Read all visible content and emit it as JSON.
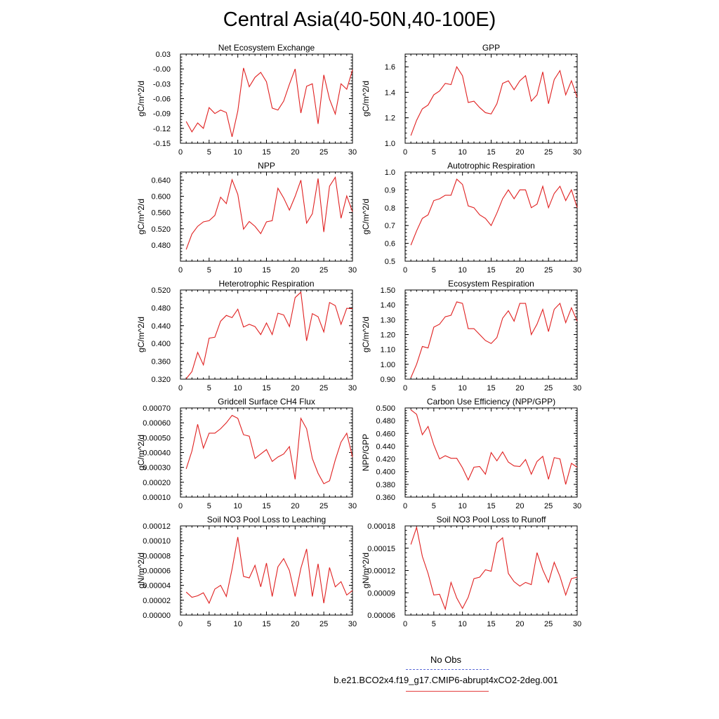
{
  "title": "Central Asia(40-50N,40-100E)",
  "series_color": "#e02020",
  "obs_color": "#5a6ad8",
  "legend": {
    "obs_label": "No Obs",
    "case_label": "b.e21.BCO2x4.f19_g17.CMIP6-abrupt4xCO2-2deg.001"
  },
  "chart_data": [
    {
      "type": "line",
      "title": "Net Ecosystem Exchange",
      "ylabel": "gC/m^2/d",
      "xlabel": "",
      "xlim": [
        0,
        30
      ],
      "ylim": [
        -0.15,
        0.03
      ],
      "xticks": [
        "0",
        "5",
        "10",
        "15",
        "20",
        "25",
        "30"
      ],
      "yticks": [
        "0.03",
        "-0.00",
        "-0.03",
        "-0.06",
        "-0.09",
        "-0.12",
        "-0.15"
      ],
      "ytick_values": [
        0.03,
        0.0,
        -0.03,
        -0.06,
        -0.09,
        -0.12,
        -0.15
      ],
      "x": [
        1,
        2,
        3,
        4,
        5,
        6,
        7,
        8,
        9,
        10,
        11,
        12,
        13,
        14,
        15,
        16,
        17,
        18,
        19,
        20,
        21,
        22,
        23,
        24,
        25,
        26,
        27,
        28,
        29,
        30
      ],
      "values": [
        -0.106,
        -0.127,
        -0.109,
        -0.12,
        -0.078,
        -0.09,
        -0.083,
        -0.088,
        -0.137,
        -0.085,
        0.002,
        -0.036,
        -0.017,
        -0.007,
        -0.026,
        -0.079,
        -0.083,
        -0.065,
        -0.031,
        0.0,
        -0.089,
        -0.035,
        -0.03,
        -0.111,
        -0.012,
        -0.061,
        -0.091,
        -0.03,
        -0.041,
        -0.002
      ]
    },
    {
      "type": "line",
      "title": "GPP",
      "ylabel": "gC/m^2/d",
      "xlabel": "",
      "xlim": [
        0,
        30
      ],
      "ylim": [
        1.0,
        1.7
      ],
      "xticks": [
        "0",
        "5",
        "10",
        "15",
        "20",
        "25",
        "30"
      ],
      "yticks": [
        "1.6",
        "1.4",
        "1.2",
        "1.0"
      ],
      "ytick_values": [
        1.6,
        1.4,
        1.2,
        1.0
      ],
      "x": [
        1,
        2,
        3,
        4,
        5,
        6,
        7,
        8,
        9,
        10,
        11,
        12,
        13,
        14,
        15,
        16,
        17,
        18,
        19,
        20,
        21,
        22,
        23,
        24,
        25,
        26,
        27,
        28,
        29,
        30
      ],
      "values": [
        1.06,
        1.18,
        1.27,
        1.3,
        1.38,
        1.41,
        1.47,
        1.46,
        1.6,
        1.53,
        1.32,
        1.33,
        1.28,
        1.24,
        1.23,
        1.31,
        1.47,
        1.49,
        1.42,
        1.49,
        1.53,
        1.33,
        1.38,
        1.56,
        1.31,
        1.5,
        1.57,
        1.38,
        1.49,
        1.36
      ]
    },
    {
      "type": "line",
      "title": "NPP",
      "ylabel": "gC/m^2/d",
      "xlabel": "",
      "xlim": [
        0,
        30
      ],
      "ylim": [
        0.44,
        0.66
      ],
      "xticks": [
        "0",
        "5",
        "10",
        "15",
        "20",
        "25",
        "30"
      ],
      "yticks": [
        "0.640",
        "0.600",
        "0.560",
        "0.520",
        "0.480"
      ],
      "ytick_values": [
        0.64,
        0.6,
        0.56,
        0.52,
        0.48
      ],
      "x": [
        1,
        2,
        3,
        4,
        5,
        6,
        7,
        8,
        9,
        10,
        11,
        12,
        13,
        14,
        15,
        16,
        17,
        18,
        19,
        20,
        21,
        22,
        23,
        24,
        25,
        26,
        27,
        28,
        29,
        30
      ],
      "values": [
        0.469,
        0.507,
        0.526,
        0.537,
        0.54,
        0.553,
        0.598,
        0.582,
        0.641,
        0.605,
        0.519,
        0.538,
        0.526,
        0.508,
        0.537,
        0.54,
        0.62,
        0.596,
        0.566,
        0.6,
        0.64,
        0.534,
        0.557,
        0.644,
        0.512,
        0.625,
        0.647,
        0.546,
        0.601,
        0.562
      ]
    },
    {
      "type": "line",
      "title": "Autotrophic Respiration",
      "ylabel": "gC/m^2/d",
      "xlabel": "",
      "xlim": [
        0,
        30
      ],
      "ylim": [
        0.5,
        1.0
      ],
      "xticks": [
        "0",
        "5",
        "10",
        "15",
        "20",
        "25",
        "30"
      ],
      "yticks": [
        "1.0",
        "0.9",
        "0.8",
        "0.7",
        "0.6",
        "0.5"
      ],
      "ytick_values": [
        1.0,
        0.9,
        0.8,
        0.7,
        0.6,
        0.5
      ],
      "x": [
        1,
        2,
        3,
        4,
        5,
        6,
        7,
        8,
        9,
        10,
        11,
        12,
        13,
        14,
        15,
        16,
        17,
        18,
        19,
        20,
        21,
        22,
        23,
        24,
        25,
        26,
        27,
        28,
        29,
        30
      ],
      "values": [
        0.59,
        0.67,
        0.74,
        0.76,
        0.84,
        0.85,
        0.87,
        0.87,
        0.96,
        0.93,
        0.81,
        0.8,
        0.76,
        0.74,
        0.7,
        0.77,
        0.85,
        0.9,
        0.85,
        0.9,
        0.9,
        0.8,
        0.82,
        0.92,
        0.8,
        0.88,
        0.92,
        0.84,
        0.9,
        0.8
      ]
    },
    {
      "type": "line",
      "title": "Heterotrophic Respiration",
      "ylabel": "gC/m^2/d",
      "xlabel": "",
      "xlim": [
        0,
        30
      ],
      "ylim": [
        0.32,
        0.52
      ],
      "xticks": [
        "0",
        "5",
        "10",
        "15",
        "20",
        "25",
        "30"
      ],
      "yticks": [
        "0.520",
        "0.480",
        "0.440",
        "0.400",
        "0.360",
        "0.320"
      ],
      "ytick_values": [
        0.52,
        0.48,
        0.44,
        0.4,
        0.36,
        0.32
      ],
      "x": [
        1,
        2,
        3,
        4,
        5,
        6,
        7,
        8,
        9,
        10,
        11,
        12,
        13,
        14,
        15,
        16,
        17,
        18,
        19,
        20,
        21,
        22,
        23,
        24,
        25,
        26,
        27,
        28,
        29,
        30
      ],
      "values": [
        0.321,
        0.337,
        0.38,
        0.352,
        0.412,
        0.414,
        0.45,
        0.463,
        0.458,
        0.477,
        0.437,
        0.443,
        0.438,
        0.42,
        0.446,
        0.42,
        0.468,
        0.464,
        0.438,
        0.503,
        0.515,
        0.406,
        0.467,
        0.46,
        0.426,
        0.492,
        0.485,
        0.443,
        0.479,
        0.478
      ]
    },
    {
      "type": "line",
      "title": "Ecosystem Respiration",
      "ylabel": "gC/m^2/d",
      "xlabel": "",
      "xlim": [
        0,
        30
      ],
      "ylim": [
        0.9,
        1.5
      ],
      "xticks": [
        "0",
        "5",
        "10",
        "15",
        "20",
        "25",
        "30"
      ],
      "yticks": [
        "1.50",
        "1.40",
        "1.30",
        "1.20",
        "1.10",
        "1.00",
        "0.90"
      ],
      "ytick_values": [
        1.5,
        1.4,
        1.3,
        1.2,
        1.1,
        1.0,
        0.9
      ],
      "x": [
        1,
        2,
        3,
        4,
        5,
        6,
        7,
        8,
        9,
        10,
        11,
        12,
        13,
        14,
        15,
        16,
        17,
        18,
        19,
        20,
        21,
        22,
        23,
        24,
        25,
        26,
        27,
        28,
        29,
        30
      ],
      "values": [
        0.91,
        1.0,
        1.12,
        1.11,
        1.25,
        1.27,
        1.32,
        1.33,
        1.42,
        1.41,
        1.24,
        1.24,
        1.2,
        1.16,
        1.14,
        1.18,
        1.31,
        1.36,
        1.29,
        1.41,
        1.41,
        1.2,
        1.27,
        1.37,
        1.22,
        1.37,
        1.41,
        1.28,
        1.38,
        1.29
      ]
    },
    {
      "type": "line",
      "title": "Gridcell Surface CH4 Flux",
      "ylabel": "gC/m^2/d",
      "xlabel": "",
      "xlim": [
        0,
        30
      ],
      "ylim": [
        0.0001,
        0.0007
      ],
      "xticks": [
        "0",
        "5",
        "10",
        "15",
        "20",
        "25",
        "30"
      ],
      "yticks": [
        "0.00070",
        "0.00060",
        "0.00050",
        "0.00040",
        "0.00030",
        "0.00020",
        "0.00010"
      ],
      "ytick_values": [
        0.0007,
        0.0006,
        0.0005,
        0.0004,
        0.0003,
        0.0002,
        0.0001
      ],
      "x": [
        1,
        2,
        3,
        4,
        5,
        6,
        7,
        8,
        9,
        10,
        11,
        12,
        13,
        14,
        15,
        16,
        17,
        18,
        19,
        20,
        21,
        22,
        23,
        24,
        25,
        26,
        27,
        28,
        29,
        30
      ],
      "values": [
        0.00029,
        0.00041,
        0.00059,
        0.00043,
        0.00053,
        0.00053,
        0.00056,
        0.0006,
        0.00065,
        0.00063,
        0.00052,
        0.00051,
        0.00036,
        0.00039,
        0.00042,
        0.00034,
        0.00037,
        0.00039,
        0.00044,
        0.00022,
        0.00063,
        0.00056,
        0.00036,
        0.00026,
        0.00019,
        0.00021,
        0.00035,
        0.00047,
        0.00053,
        0.00037
      ]
    },
    {
      "type": "line",
      "title": "Carbon Use Efficiency (NPP/GPP)",
      "ylabel": "NPP/GPP",
      "xlabel": "",
      "xlim": [
        0,
        30
      ],
      "ylim": [
        0.36,
        0.5
      ],
      "xticks": [
        "0",
        "5",
        "10",
        "15",
        "20",
        "25",
        "30"
      ],
      "yticks": [
        "0.500",
        "0.480",
        "0.460",
        "0.440",
        "0.420",
        "0.400",
        "0.380",
        "0.360"
      ],
      "ytick_values": [
        0.5,
        0.48,
        0.46,
        0.44,
        0.42,
        0.4,
        0.38,
        0.36
      ],
      "x": [
        1,
        2,
        3,
        4,
        5,
        6,
        7,
        8,
        9,
        10,
        11,
        12,
        13,
        14,
        15,
        16,
        17,
        18,
        19,
        20,
        21,
        22,
        23,
        24,
        25,
        26,
        27,
        28,
        29,
        30
      ],
      "values": [
        0.497,
        0.49,
        0.458,
        0.471,
        0.442,
        0.42,
        0.425,
        0.421,
        0.421,
        0.406,
        0.387,
        0.407,
        0.408,
        0.396,
        0.43,
        0.417,
        0.431,
        0.415,
        0.409,
        0.408,
        0.419,
        0.396,
        0.416,
        0.424,
        0.388,
        0.422,
        0.42,
        0.38,
        0.413,
        0.407
      ]
    },
    {
      "type": "line",
      "title": "Soil NO3 Pool Loss to Leaching",
      "ylabel": "gN/m^2/d",
      "xlabel": "",
      "xlim": [
        0,
        30
      ],
      "ylim": [
        0.0,
        0.00012
      ],
      "xticks": [
        "0",
        "5",
        "10",
        "15",
        "20",
        "25",
        "30"
      ],
      "yticks": [
        "0.00012",
        "0.00010",
        "0.00008",
        "0.00006",
        "0.00004",
        "0.00002",
        "0.00000"
      ],
      "ytick_values": [
        0.00012,
        0.0001,
        8e-05,
        6e-05,
        4e-05,
        2e-05,
        0.0
      ],
      "x": [
        1,
        2,
        3,
        4,
        5,
        6,
        7,
        8,
        9,
        10,
        11,
        12,
        13,
        14,
        15,
        16,
        17,
        18,
        19,
        20,
        21,
        22,
        23,
        24,
        25,
        26,
        27,
        28,
        29,
        30
      ],
      "values": [
        3.1e-05,
        2.4e-05,
        2.6e-05,
        3e-05,
        1.6e-05,
        3.5e-05,
        4e-05,
        2.5e-05,
        6.2e-05,
        0.000105,
        5.2e-05,
        5e-05,
        6.7e-05,
        3.8e-05,
        7e-05,
        2.5e-05,
        6.5e-05,
        7.6e-05,
        6e-05,
        2.5e-05,
        6.3e-05,
        8.9e-05,
        2.5e-05,
        6.9e-05,
        1.6e-05,
        6.4e-05,
        3.8e-05,
        4.5e-05,
        2.7e-05,
        3.3e-05
      ]
    },
    {
      "type": "line",
      "title": "Soil NO3 Pool Loss to Runoff",
      "ylabel": "gN/m^2/d",
      "xlabel": "",
      "xlim": [
        0,
        30
      ],
      "ylim": [
        6e-05,
        0.00018
      ],
      "xticks": [
        "0",
        "5",
        "10",
        "15",
        "20",
        "25",
        "30"
      ],
      "yticks": [
        "0.00018",
        "0.00015",
        "0.00012",
        "0.00009",
        "0.00006"
      ],
      "ytick_values": [
        0.00018,
        0.00015,
        0.00012,
        9e-05,
        6e-05
      ],
      "x": [
        1,
        2,
        3,
        4,
        5,
        6,
        7,
        8,
        9,
        10,
        11,
        12,
        13,
        14,
        15,
        16,
        17,
        18,
        19,
        20,
        21,
        22,
        23,
        24,
        25,
        26,
        27,
        28,
        29,
        30
      ],
      "values": [
        0.000155,
        0.000178,
        0.000139,
        0.000116,
        8.7e-05,
        8.8e-05,
        6.8e-05,
        0.000104,
        8.3e-05,
        6.9e-05,
        8.4e-05,
        0.000109,
        0.000111,
        0.000121,
        0.000119,
        0.000157,
        0.000164,
        0.000116,
        0.000105,
        9.9e-05,
        0.000104,
        0.000101,
        0.000144,
        0.000121,
        0.000104,
        0.000131,
        0.000112,
        8.7e-05,
        0.000109,
        0.000111
      ]
    }
  ]
}
